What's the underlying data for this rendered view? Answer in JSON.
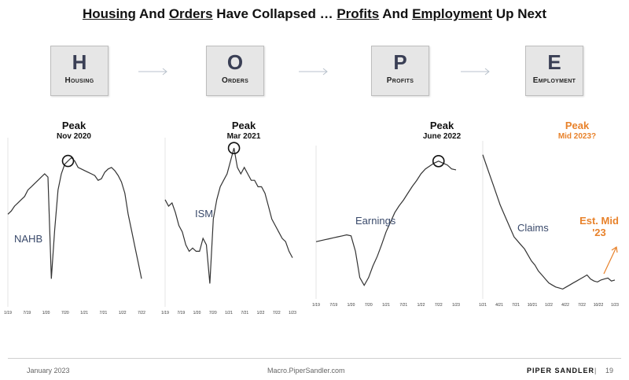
{
  "title": {
    "housing": "Housing",
    "and1": " And ",
    "orders": "Orders",
    "mid": " Have Collapsed … ",
    "profits": "Profits",
    "and2": " And ",
    "employment": "Employment",
    "end": " Up Next"
  },
  "tiles": [
    {
      "letter": "H",
      "label": "Housing"
    },
    {
      "letter": "O",
      "label": "Orders"
    },
    {
      "letter": "P",
      "label": "Profits"
    },
    {
      "letter": "E",
      "label": "Employment"
    }
  ],
  "colors": {
    "line": "#333333",
    "accent": "#e8822b",
    "label": "#3a4a6b"
  },
  "chart_data": [
    {
      "type": "line",
      "series_label": "NAHB",
      "peak_title": "Peak",
      "peak_date": "Nov 2020",
      "x_ticks": [
        "1/19",
        "7/19",
        "1/20",
        "7/20",
        "1/21",
        "7/21",
        "1/22",
        "7/22"
      ],
      "ylim": [
        0,
        100
      ],
      "values": [
        55,
        57,
        60,
        62,
        64,
        66,
        70,
        72,
        74,
        76,
        78,
        80,
        78,
        15,
        45,
        70,
        80,
        86,
        88,
        90,
        88,
        84,
        83,
        82,
        81,
        80,
        79,
        76,
        77,
        81,
        83,
        84,
        82,
        79,
        75,
        68,
        55,
        45,
        35,
        25,
        15
      ]
    },
    {
      "type": "line",
      "series_label": "ISM",
      "peak_title": "Peak",
      "peak_date": "Mar 2021",
      "x_ticks": [
        "1/19",
        "7/19",
        "1/20",
        "7/20",
        "1/21",
        "7/21",
        "1/22",
        "7/22",
        "1/23"
      ],
      "ylim": [
        40,
        65
      ],
      "values": [
        56,
        55,
        55.5,
        54,
        52,
        51,
        49,
        48,
        48.5,
        48,
        48,
        50,
        49,
        43,
        53,
        56,
        58,
        59,
        60,
        62,
        64,
        61,
        60,
        61,
        60,
        59,
        59,
        58,
        58,
        57,
        55,
        53,
        52,
        51,
        50,
        49.5,
        48,
        47
      ]
    },
    {
      "type": "line",
      "series_label": "Earnings",
      "peak_title": "Peak",
      "peak_date": "June 2022",
      "x_ticks": [
        "1/19",
        "7/19",
        "1/20",
        "7/20",
        "1/21",
        "7/21",
        "1/22",
        "7/22",
        "1/23"
      ],
      "ylim": [
        100,
        250
      ],
      "values": [
        155,
        156,
        157,
        158,
        159,
        160,
        161,
        162,
        161,
        145,
        118,
        110,
        118,
        130,
        140,
        152,
        165,
        175,
        185,
        192,
        198,
        205,
        212,
        218,
        225,
        230,
        233,
        236,
        238,
        236,
        234,
        230,
        229
      ]
    },
    {
      "type": "line",
      "series_label": "Claims",
      "peak_title": "Peak",
      "peak_date": "Mid 2023?",
      "est_label": "Est. Mid '23",
      "x_ticks": [
        "1/21",
        "4/21",
        "7/21",
        "10/21",
        "1/22",
        "4/22",
        "7/22",
        "10/22",
        "1/23"
      ],
      "ylim": [
        150,
        900
      ],
      "values": [
        850,
        800,
        750,
        700,
        650,
        600,
        560,
        520,
        480,
        440,
        420,
        400,
        380,
        350,
        320,
        300,
        270,
        250,
        230,
        210,
        200,
        190,
        185,
        180,
        190,
        200,
        210,
        220,
        230,
        240,
        250,
        230,
        220,
        215,
        225,
        230,
        235,
        220,
        225
      ]
    }
  ],
  "footer": {
    "date": "January 2023",
    "site": "Macro.PiperSandler.com",
    "brand": "PIPER SANDLER",
    "sep": "|",
    "page": "19"
  }
}
